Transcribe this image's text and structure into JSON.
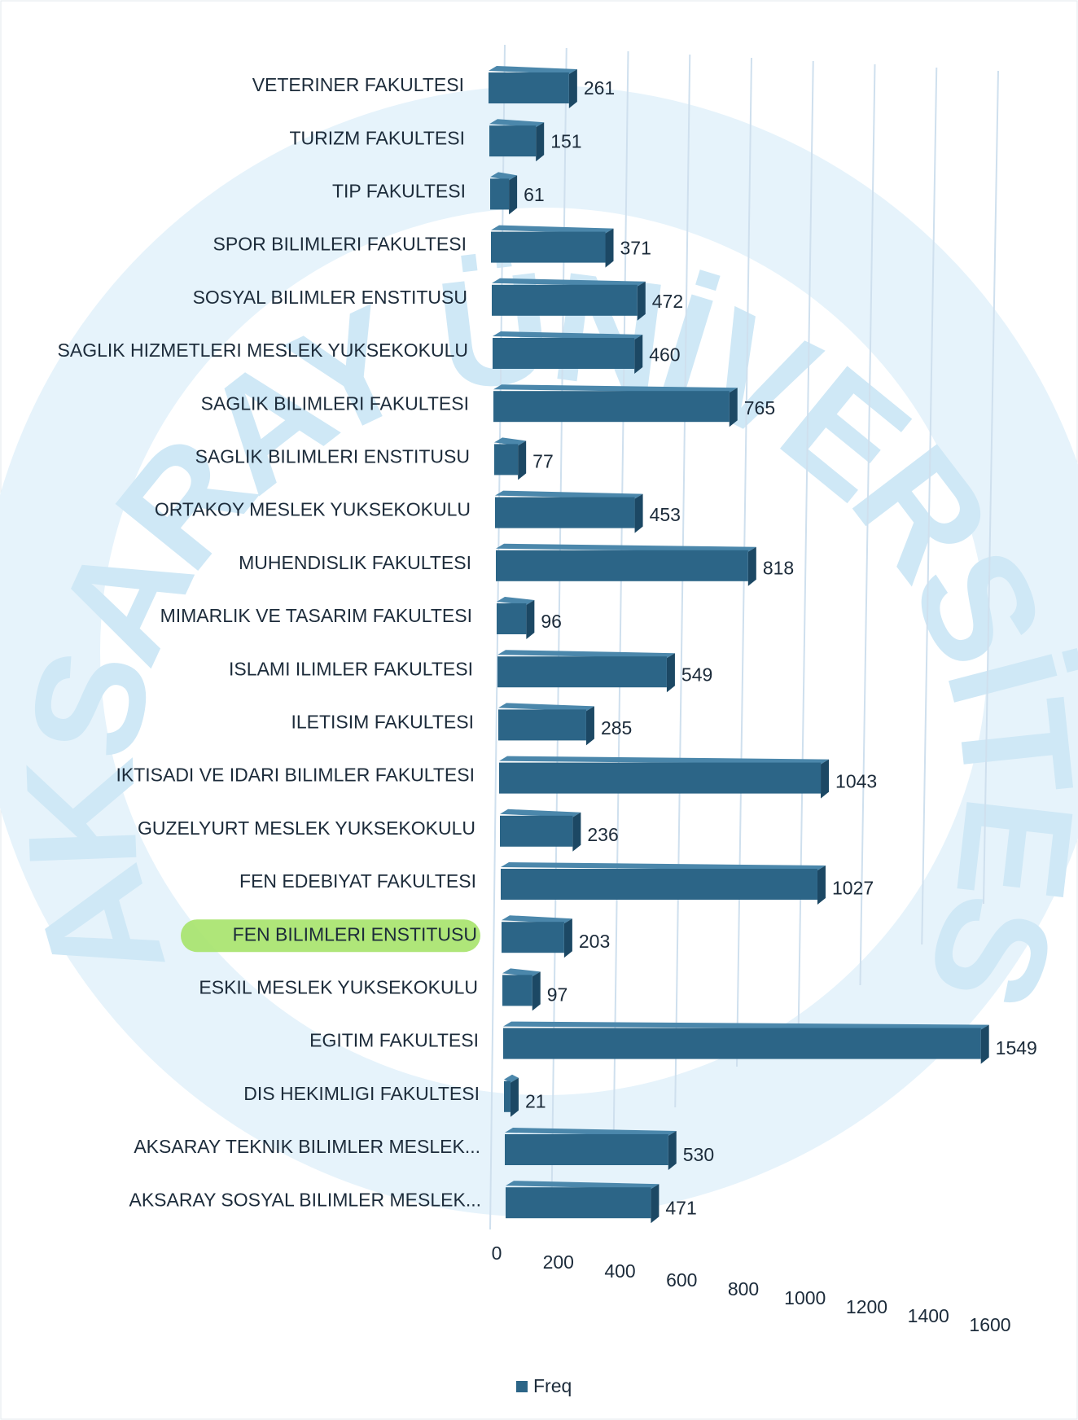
{
  "chart_data": {
    "type": "bar3d_horizontal",
    "watermark": "AKSARAY ÜNİVERSİTESİ",
    "categories": [
      "VETERINER FAKULTESI",
      "TURIZM FAKULTESI",
      "TIP FAKULTESI",
      "SPOR BILIMLERI FAKULTESI",
      "SOSYAL BILIMLER ENSTITUSU",
      "SAGLIK HIZMETLERI MESLEK YUKSEKOKULU",
      "SAGLIK BILIMLERI FAKULTESI",
      "SAGLIK BILIMLERI ENSTITUSU",
      "ORTAKOY MESLEK YUKSEKOKULU",
      "MUHENDISLIK FAKULTESI",
      "MIMARLIK VE TASARIM FAKULTESI",
      "ISLAMI ILIMLER FAKULTESI",
      "ILETISIM FAKULTESI",
      "IKTISADI VE IDARI BILIMLER FAKULTESI",
      "GUZELYURT MESLEK YUKSEKOKULU",
      "FEN EDEBIYAT FAKULTESI",
      "FEN BILIMLERI ENSTITUSU",
      "ESKIL MESLEK YUKSEKOKULU",
      "EGITIM FAKULTESI",
      "DIS HEKIMLIGI FAKULTESI",
      "AKSARAY TEKNIK BILIMLER MESLEK...",
      "AKSARAY SOSYAL BILIMLER MESLEK..."
    ],
    "series": [
      {
        "name": "Freq",
        "color": "#2c6587",
        "values": [
          261,
          151,
          61,
          371,
          472,
          460,
          765,
          77,
          453,
          818,
          96,
          549,
          285,
          1043,
          236,
          1027,
          203,
          97,
          1549,
          21,
          530,
          471
        ]
      }
    ],
    "highlighted_category": 16,
    "xlim": [
      0,
      1600
    ],
    "xticks": [
      0,
      200,
      400,
      600,
      800,
      1000,
      1200,
      1400,
      1600
    ],
    "grid": true,
    "legend": "bottom"
  }
}
